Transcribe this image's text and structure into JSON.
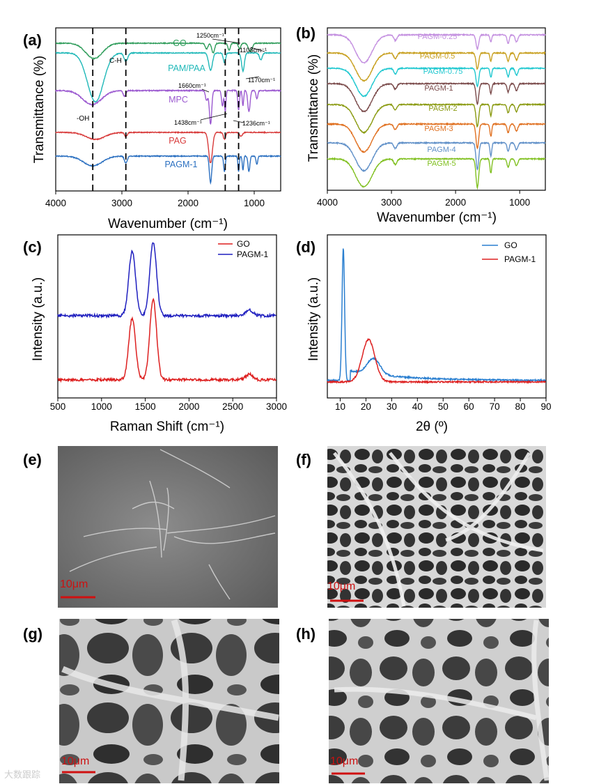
{
  "panel_labels": {
    "a": "(a)",
    "b": "(b)",
    "c": "(c)",
    "d": "(d)",
    "e": "(e)",
    "f": "(f)",
    "g": "(g)",
    "h": "(h)"
  },
  "colors": {
    "GO": "#2e9c5a",
    "PAM_PAA": "#1fb8b8",
    "MPC": "#9b59d0",
    "PAG": "#d83a3a",
    "PAGM_1": "#2a6fc0",
    "raman_GO": "#dd1f1f",
    "raman_PAGM": "#1f1fbf",
    "xrd_GO": "#2a7fd0",
    "xrd_PAGM": "#dd2020"
  },
  "sem_scale_label": "10μm",
  "watermark": "大数跟踪",
  "chart_data": [
    {
      "panel": "a",
      "type": "line",
      "title": "",
      "xlabel": "Wavenumber (cm⁻¹)",
      "ylabel": "Transmittance (%)",
      "xlim": [
        4000,
        600
      ],
      "xticks": [
        "4000",
        "3000",
        "2000",
        "1000"
      ],
      "series": [
        {
          "name": "GO",
          "color": "#2e9c5a"
        },
        {
          "name": "PAM/PAA",
          "color": "#1fb8b8"
        },
        {
          "name": "MPC",
          "color": "#9b59d0"
        },
        {
          "name": "PAG",
          "color": "#d83a3a"
        },
        {
          "name": "PAGM-1",
          "color": "#2a6fc0"
        }
      ],
      "reference_lines": [
        3440,
        2940,
        1438,
        1236
      ],
      "annotations": [
        "-OH",
        "C-H",
        "1250cm⁻¹",
        "1108cm⁻¹",
        "1170cm⁻¹",
        "1660cm⁻¹",
        "1438cm⁻¹",
        "1236cm⁻¹"
      ]
    },
    {
      "panel": "b",
      "type": "line",
      "xlabel": "Wavenumber (cm⁻¹)",
      "ylabel": "Transmittance (%)",
      "xlim": [
        4000,
        600
      ],
      "xticks": [
        "4000",
        "3000",
        "2000",
        "1000"
      ],
      "series": [
        {
          "name": "PAGM-0.25",
          "color": "#c490e0"
        },
        {
          "name": "PAGM-0.5",
          "color": "#c8a020"
        },
        {
          "name": "PAGM-0.75",
          "color": "#20c8d0"
        },
        {
          "name": "PAGM-1",
          "color": "#7a4a4a"
        },
        {
          "name": "PAGM-2",
          "color": "#8a9a10"
        },
        {
          "name": "PAGM-3",
          "color": "#e07020"
        },
        {
          "name": "PAGM-4",
          "color": "#6090c8"
        },
        {
          "name": "PAGM-5",
          "color": "#80c020"
        }
      ]
    },
    {
      "panel": "c",
      "type": "line",
      "xlabel": "Raman Shift (cm⁻¹)",
      "ylabel": "Intensity (a.u.)",
      "xlim": [
        500,
        3000
      ],
      "xticks": [
        "500",
        "1000",
        "1500",
        "2000",
        "2500",
        "3000"
      ],
      "legend": [
        "GO",
        "PAGM-1"
      ],
      "series": [
        {
          "name": "GO",
          "color": "#dd1f1f",
          "peaks": [
            {
              "x": 1350,
              "y": 0.55
            },
            {
              "x": 1590,
              "y": 0.72
            }
          ]
        },
        {
          "name": "PAGM-1",
          "color": "#1f1fbf",
          "peaks": [
            {
              "x": 1350,
              "y": 0.88
            },
            {
              "x": 1590,
              "y": 1.0
            }
          ]
        }
      ]
    },
    {
      "panel": "d",
      "type": "line",
      "xlabel": "2θ (º)",
      "ylabel": "Intensity (a.u.)",
      "xlim": [
        5,
        90
      ],
      "xticks": [
        "10",
        "20",
        "30",
        "40",
        "50",
        "60",
        "70",
        "80",
        "90"
      ],
      "legend": [
        "GO",
        "PAGM-1"
      ],
      "series": [
        {
          "name": "GO",
          "color": "#2a7fd0",
          "peaks": [
            {
              "x": 11.2,
              "y": 1.0
            },
            {
              "x": 23,
              "y": 0.12
            }
          ]
        },
        {
          "name": "PAGM-1",
          "color": "#dd2020",
          "peaks": [
            {
              "x": 21,
              "y": 0.32
            }
          ]
        }
      ]
    }
  ]
}
